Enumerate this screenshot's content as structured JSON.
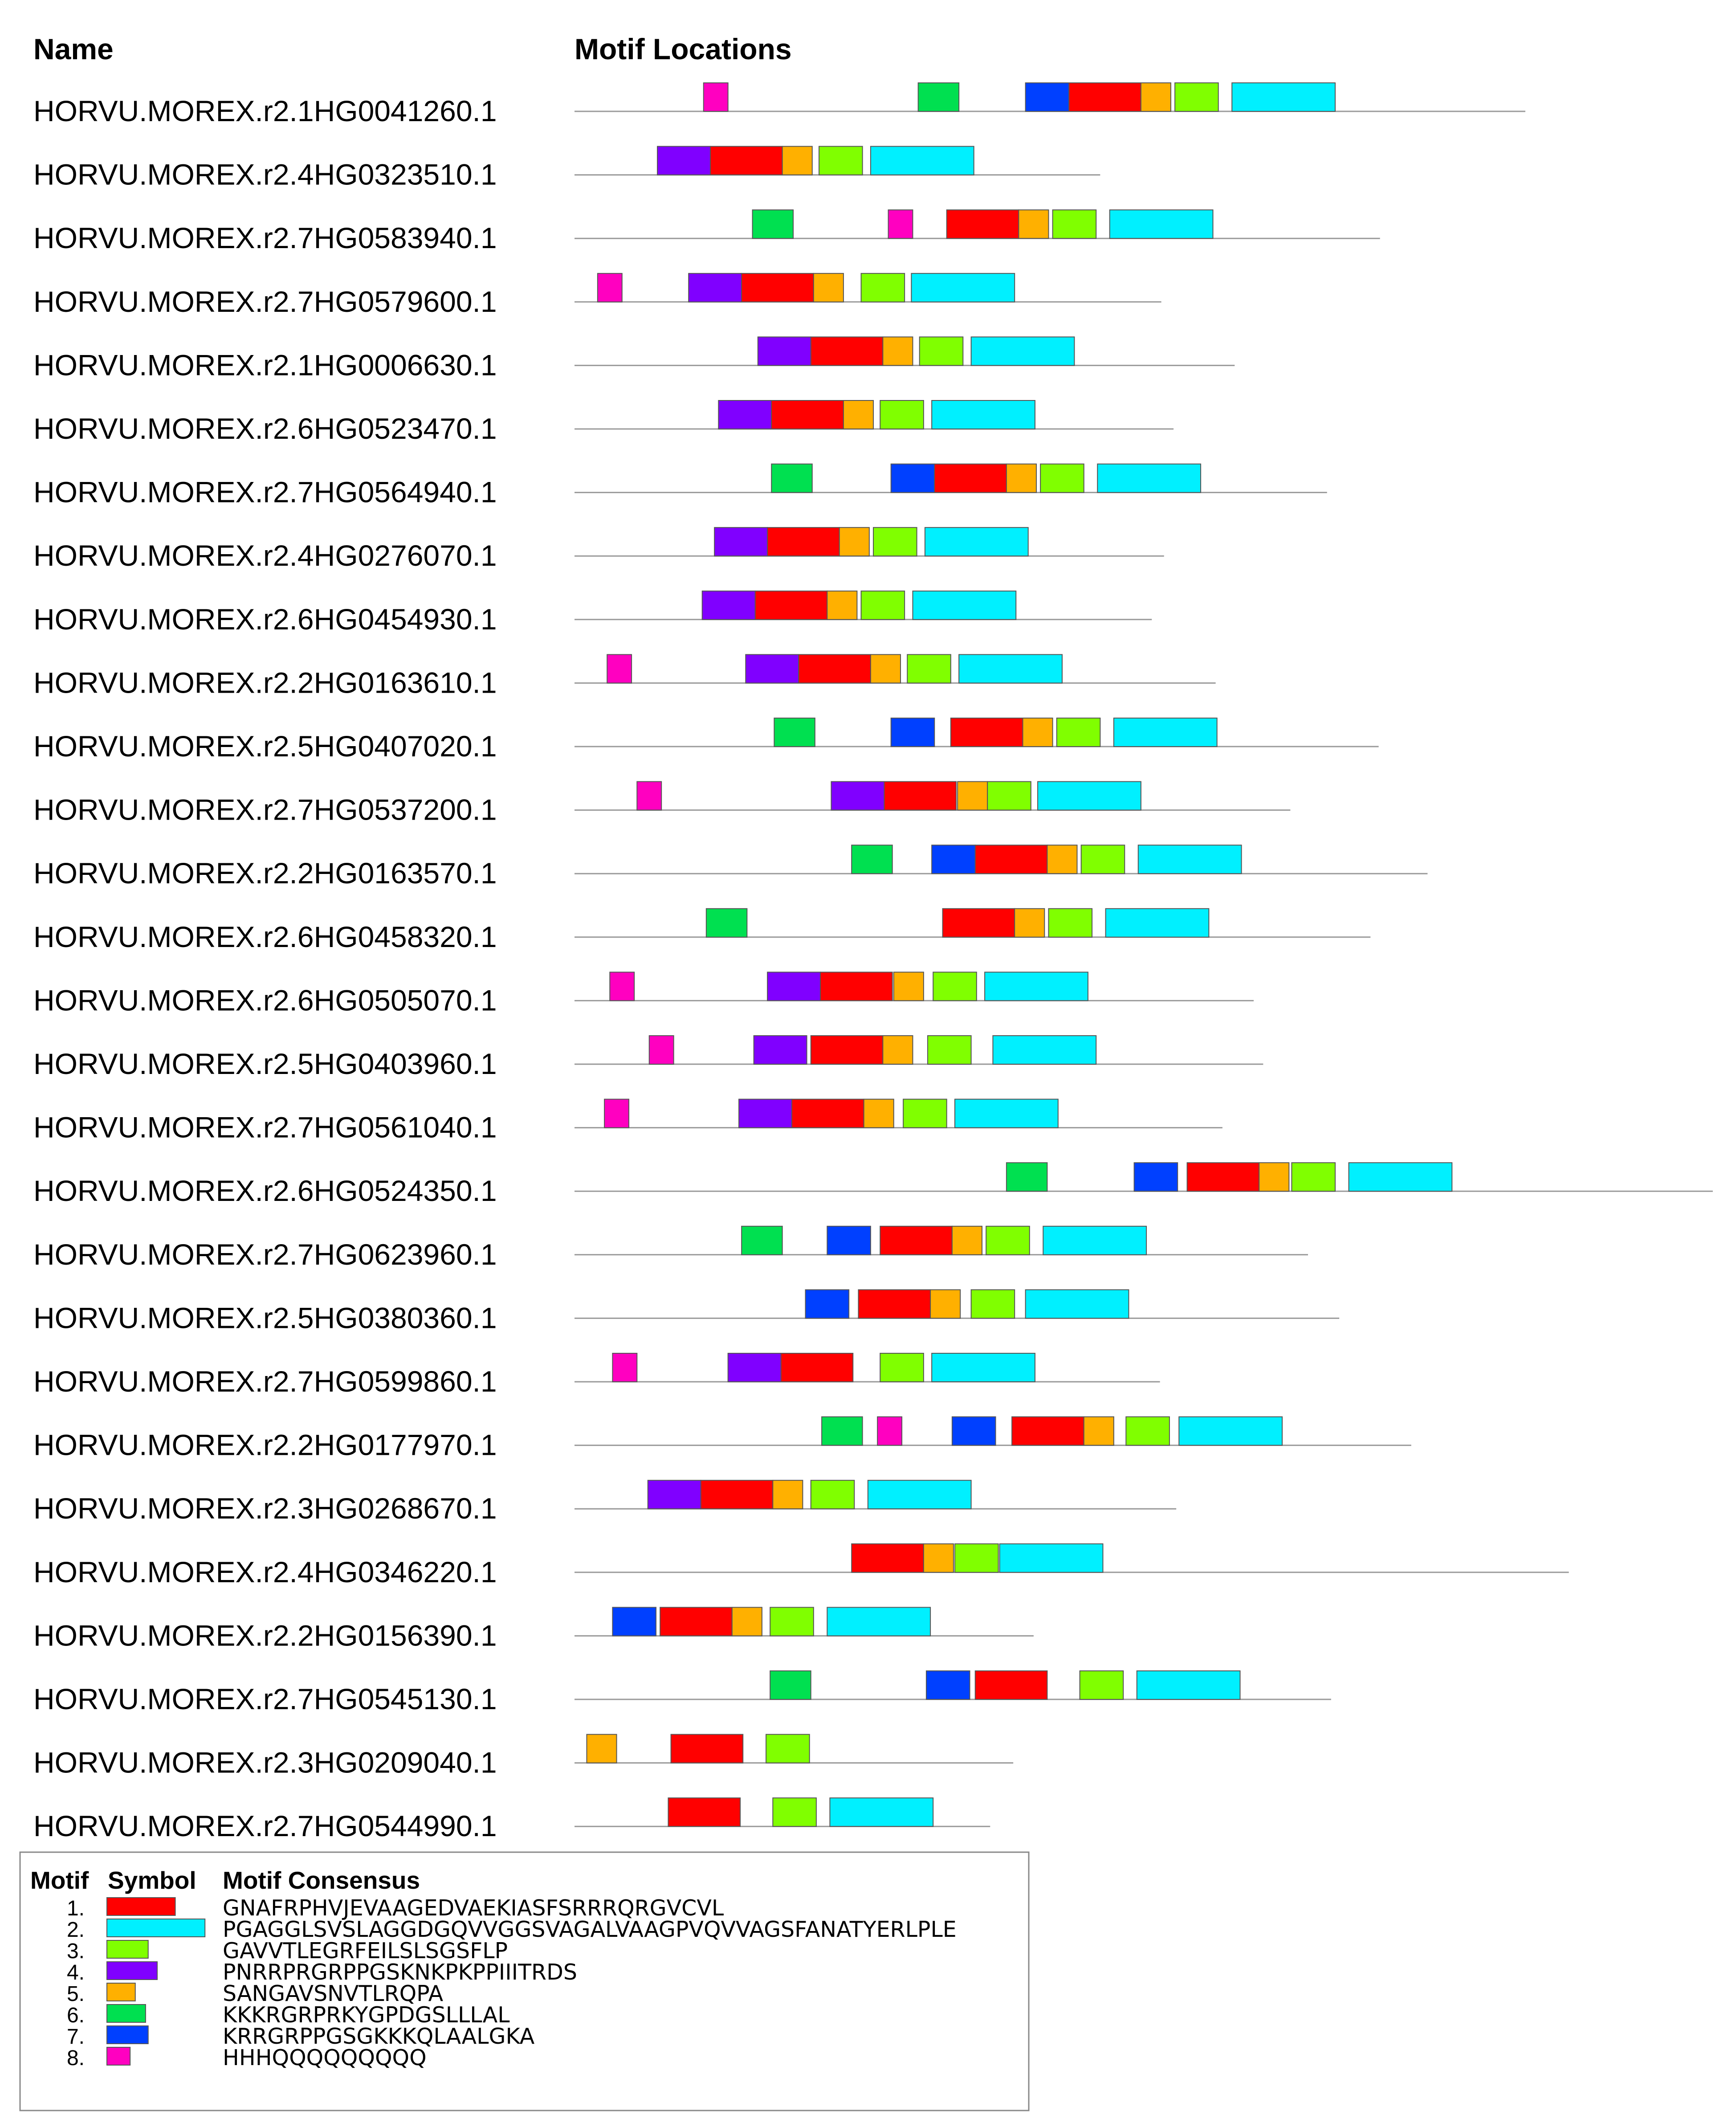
{
  "headers": {
    "name": "Name",
    "locations": "Motif Locations"
  },
  "motifs": [
    {
      "num": "1.",
      "color": "#ff0000",
      "consensus": "GNAFRPHVJEVAAGEDVAEKIASFSRRRQRGVCVL"
    },
    {
      "num": "2.",
      "color": "#00f0ff",
      "consensus": "PGAGGLSVSLAGGDGQVVGGSVAGALVAAGPVQVVAGSFANATYERLPLE"
    },
    {
      "num": "3.",
      "color": "#80ff00",
      "consensus": "GAVVTLEGRFEILSLSGSFLP"
    },
    {
      "num": "4.",
      "color": "#8000ff",
      "consensus": "PNRRPRGRPPGSKNKPKPPIIITRDS"
    },
    {
      "num": "5.",
      "color": "#ffb000",
      "consensus": "SANGAVSNVTLRQPA"
    },
    {
      "num": "6.",
      "color": "#00e050",
      "consensus": "KKKRGRPRKYGPDGSLLLAL"
    },
    {
      "num": "7.",
      "color": "#0040ff",
      "consensus": "KRRGRPPGSGKKKQLAALGKA"
    },
    {
      "num": "8.",
      "color": "#ff00c0",
      "consensus": "HHHQQQQQQQQQ"
    }
  ],
  "legend": {
    "col_motif": "Motif",
    "col_symbol": "Symbol",
    "col_consensus": "Motif Consensus"
  },
  "sequences": [
    {
      "name": "HORVU.MOREX.r2.1HG0041260.1",
      "length": 700,
      "motifs": [
        [
          8,
          95
        ],
        [
          6,
          253
        ],
        [
          7,
          332
        ],
        [
          1,
          364
        ],
        [
          5,
          417
        ],
        [
          3,
          442
        ],
        [
          2,
          484
        ]
      ]
    },
    {
      "name": "HORVU.MOREX.r2.4HG0323510.1",
      "length": 387,
      "motifs": [
        [
          4,
          61
        ],
        [
          1,
          100
        ],
        [
          5,
          153
        ],
        [
          3,
          180
        ],
        [
          2,
          218
        ]
      ]
    },
    {
      "name": "HORVU.MOREX.r2.7HG0583940.1",
      "length": 593,
      "motifs": [
        [
          6,
          131
        ],
        [
          8,
          231
        ],
        [
          1,
          274
        ],
        [
          5,
          327
        ],
        [
          3,
          352
        ],
        [
          2,
          394
        ]
      ]
    },
    {
      "name": "HORVU.MOREX.r2.7HG0579600.1",
      "length": 432,
      "motifs": [
        [
          8,
          17
        ],
        [
          4,
          84
        ],
        [
          1,
          123
        ],
        [
          5,
          176
        ],
        [
          3,
          211
        ],
        [
          2,
          248
        ]
      ]
    },
    {
      "name": "HORVU.MOREX.r2.1HG0006630.1",
      "length": 486,
      "motifs": [
        [
          4,
          135
        ],
        [
          1,
          174
        ],
        [
          5,
          227
        ],
        [
          3,
          254
        ],
        [
          2,
          292
        ]
      ]
    },
    {
      "name": "HORVU.MOREX.r2.6HG0523470.1",
      "length": 441,
      "motifs": [
        [
          4,
          106
        ],
        [
          1,
          145
        ],
        [
          5,
          198
        ],
        [
          3,
          225
        ],
        [
          2,
          263
        ]
      ]
    },
    {
      "name": "HORVU.MOREX.r2.7HG0564940.1",
      "length": 554,
      "motifs": [
        [
          6,
          145
        ],
        [
          7,
          233
        ],
        [
          1,
          265
        ],
        [
          5,
          318
        ],
        [
          3,
          343
        ],
        [
          2,
          385
        ]
      ]
    },
    {
      "name": "HORVU.MOREX.r2.4HG0276070.1",
      "length": 434,
      "motifs": [
        [
          4,
          103
        ],
        [
          1,
          142
        ],
        [
          5,
          195
        ],
        [
          3,
          220
        ],
        [
          2,
          258
        ]
      ]
    },
    {
      "name": "HORVU.MOREX.r2.6HG0454930.1",
      "length": 425,
      "motifs": [
        [
          4,
          94
        ],
        [
          1,
          133
        ],
        [
          5,
          186
        ],
        [
          3,
          211
        ],
        [
          2,
          249
        ]
      ]
    },
    {
      "name": "HORVU.MOREX.r2.2HG0163610.1",
      "length": 472,
      "motifs": [
        [
          8,
          24
        ],
        [
          4,
          126
        ],
        [
          1,
          165
        ],
        [
          5,
          218
        ],
        [
          3,
          245
        ],
        [
          2,
          283
        ]
      ]
    },
    {
      "name": "HORVU.MOREX.r2.5HG0407020.1",
      "length": 592,
      "motifs": [
        [
          6,
          147
        ],
        [
          7,
          233
        ],
        [
          1,
          277
        ],
        [
          5,
          330
        ],
        [
          3,
          355
        ],
        [
          2,
          397
        ]
      ]
    },
    {
      "name": "HORVU.MOREX.r2.7HG0537200.1",
      "length": 527,
      "motifs": [
        [
          8,
          46
        ],
        [
          4,
          189
        ],
        [
          1,
          228
        ],
        [
          5,
          282
        ],
        [
          3,
          304
        ],
        [
          2,
          341
        ]
      ]
    },
    {
      "name": "HORVU.MOREX.r2.2HG0163570.1",
      "length": 628,
      "motifs": [
        [
          6,
          204
        ],
        [
          7,
          263
        ],
        [
          1,
          295
        ],
        [
          5,
          348
        ],
        [
          3,
          373
        ],
        [
          2,
          415
        ]
      ]
    },
    {
      "name": "HORVU.MOREX.r2.6HG0458320.1",
      "length": 586,
      "motifs": [
        [
          6,
          97
        ],
        [
          1,
          271
        ],
        [
          5,
          324
        ],
        [
          3,
          349
        ],
        [
          2,
          391
        ]
      ]
    },
    {
      "name": "HORVU.MOREX.r2.6HG0505070.1",
      "length": 500,
      "motifs": [
        [
          8,
          26
        ],
        [
          4,
          142
        ],
        [
          1,
          181
        ],
        [
          5,
          235
        ],
        [
          3,
          264
        ],
        [
          2,
          302
        ]
      ]
    },
    {
      "name": "HORVU.MOREX.r2.5HG0403960.1",
      "length": 507,
      "motifs": [
        [
          8,
          55
        ],
        [
          4,
          132
        ],
        [
          1,
          174
        ],
        [
          5,
          227
        ],
        [
          3,
          260
        ],
        [
          2,
          308
        ]
      ]
    },
    {
      "name": "HORVU.MOREX.r2.7HG0561040.1",
      "length": 477,
      "motifs": [
        [
          8,
          22
        ],
        [
          4,
          121
        ],
        [
          1,
          160
        ],
        [
          5,
          213
        ],
        [
          3,
          242
        ],
        [
          2,
          280
        ]
      ]
    },
    {
      "name": "HORVU.MOREX.r2.6HG0524350.1",
      "length": 838,
      "motifs": [
        [
          6,
          318
        ],
        [
          7,
          412
        ],
        [
          1,
          451
        ],
        [
          5,
          504
        ],
        [
          3,
          528
        ],
        [
          2,
          570
        ]
      ]
    },
    {
      "name": "HORVU.MOREX.r2.7HG0623960.1",
      "length": 540,
      "motifs": [
        [
          6,
          123
        ],
        [
          7,
          186
        ],
        [
          1,
          225
        ],
        [
          5,
          278
        ],
        [
          3,
          303
        ],
        [
          2,
          345
        ]
      ]
    },
    {
      "name": "HORVU.MOREX.r2.5HG0380360.1",
      "length": 563,
      "motifs": [
        [
          7,
          170
        ],
        [
          1,
          209
        ],
        [
          5,
          262
        ],
        [
          3,
          292
        ],
        [
          2,
          332
        ]
      ]
    },
    {
      "name": "HORVU.MOREX.r2.7HG0599860.1",
      "length": 431,
      "motifs": [
        [
          8,
          28
        ],
        [
          4,
          113
        ],
        [
          1,
          152
        ],
        [
          3,
          225
        ],
        [
          2,
          263
        ]
      ]
    },
    {
      "name": "HORVU.MOREX.r2.2HG0177970.1",
      "length": 616,
      "motifs": [
        [
          6,
          182
        ],
        [
          8,
          223
        ],
        [
          7,
          278
        ],
        [
          1,
          322
        ],
        [
          5,
          375
        ],
        [
          3,
          406
        ],
        [
          2,
          445
        ]
      ]
    },
    {
      "name": "HORVU.MOREX.r2.3HG0268670.1",
      "length": 443,
      "motifs": [
        [
          4,
          54
        ],
        [
          1,
          93
        ],
        [
          5,
          146
        ],
        [
          3,
          174
        ],
        [
          2,
          216
        ]
      ]
    },
    {
      "name": "HORVU.MOREX.r2.4HG0346220.1",
      "length": 732,
      "motifs": [
        [
          1,
          204
        ],
        [
          5,
          257
        ],
        [
          3,
          280
        ],
        [
          2,
          313
        ]
      ]
    },
    {
      "name": "HORVU.MOREX.r2.2HG0156390.1",
      "length": 338,
      "motifs": [
        [
          7,
          28
        ],
        [
          1,
          63
        ],
        [
          5,
          116
        ],
        [
          3,
          144
        ],
        [
          2,
          186
        ]
      ]
    },
    {
      "name": "HORVU.MOREX.r2.7HG0545130.1",
      "length": 557,
      "motifs": [
        [
          6,
          144
        ],
        [
          7,
          259
        ],
        [
          1,
          295
        ],
        [
          3,
          372
        ],
        [
          2,
          414
        ]
      ]
    },
    {
      "name": "HORVU.MOREX.r2.3HG0209040.1",
      "length": 323,
      "motifs": [
        [
          5,
          9
        ],
        [
          1,
          71
        ],
        [
          3,
          141
        ]
      ]
    },
    {
      "name": "HORVU.MOREX.r2.7HG0544990.1",
      "length": 306,
      "motifs": [
        [
          1,
          69
        ],
        [
          3,
          146
        ],
        [
          2,
          188
        ]
      ]
    }
  ]
}
